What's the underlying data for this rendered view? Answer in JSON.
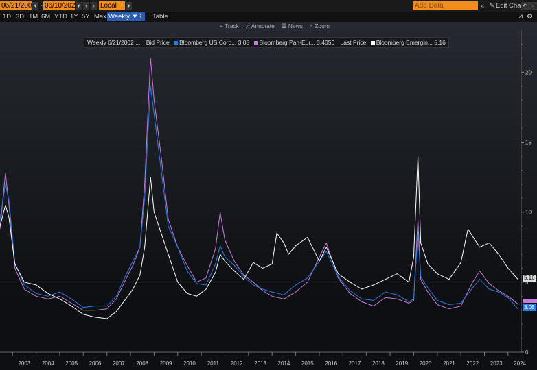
{
  "toolbar": {
    "start_date": "06/21/2002",
    "end_date": "06/10/2024",
    "separator": "-",
    "currency": "Local CCY",
    "add_data": "Add Data",
    "edit_chart": "Edit Chart",
    "periods": [
      "1D",
      "3D",
      "1M",
      "6M",
      "YTD",
      "1Y",
      "5Y",
      "Max"
    ],
    "frequency": "Weekly ▼",
    "table": "Table"
  },
  "toolbox": {
    "track": "Track",
    "annotate": "Annotate",
    "news": "News",
    "zoom": "Zoom"
  },
  "legend": {
    "prefix": "Weekly 6/21/2002 ...",
    "bid_price": "Bid Price",
    "last_price": "Last Price",
    "s1": "Bloomberg US Corp... 3.05",
    "s2": "Bloomberg Pan-Eur... 3.4056",
    "s3": "Bloomberg Emergin... 5.16"
  },
  "last_labels": {
    "s1": "3.05",
    "s3": "5.16"
  },
  "colors": {
    "accent": "#f28c1a",
    "s1": "#2a7de1",
    "s2": "#c77ddb",
    "s3": "#ffffff"
  },
  "chart_data": {
    "type": "line",
    "title": "",
    "xlabel": "",
    "ylabel": "",
    "xlim": [
      2002.47,
      2024.44
    ],
    "ylim": [
      0,
      23
    ],
    "y_ticks": [
      0,
      5,
      10,
      15,
      20
    ],
    "x_tick_labels": [
      "2003",
      "2004",
      "2005",
      "2006",
      "2007",
      "2008",
      "2009",
      "2010",
      "2011",
      "2012",
      "2013",
      "2014",
      "2015",
      "2016",
      "2017",
      "2018",
      "2019",
      "2020",
      "2021",
      "2022",
      "2023",
      "2024"
    ],
    "grid": false,
    "series": [
      {
        "name": "Bloomberg US Corp...",
        "x": [
          2002.47,
          2002.7,
          2002.85,
          2003.1,
          2003.5,
          2004.0,
          2004.5,
          2005.0,
          2005.5,
          2006.0,
          2006.5,
          2007.0,
          2007.4,
          2007.8,
          2008.1,
          2008.4,
          2008.6,
          2008.75,
          2008.85,
          2009.0,
          2009.3,
          2009.6,
          2010.0,
          2010.4,
          2010.8,
          2011.2,
          2011.6,
          2011.8,
          2012.0,
          2012.4,
          2012.8,
          2013.2,
          2013.6,
          2014.0,
          2014.5,
          2015.0,
          2015.5,
          2016.0,
          2016.3,
          2016.8,
          2017.3,
          2017.8,
          2018.3,
          2018.8,
          2019.3,
          2019.8,
          2020.0,
          2020.18,
          2020.3,
          2020.6,
          2021.0,
          2021.5,
          2022.0,
          2022.5,
          2022.8,
          2023.2,
          2023.6,
          2024.0,
          2024.44
        ],
        "values": [
          9.5,
          12.0,
          10.8,
          6.4,
          4.8,
          4.2,
          4.0,
          4.3,
          3.8,
          3.2,
          3.3,
          3.3,
          4.0,
          5.5,
          6.5,
          7.5,
          11.0,
          16.0,
          19.0,
          17.0,
          13.0,
          9.0,
          7.5,
          5.8,
          4.9,
          4.8,
          6.3,
          7.6,
          6.8,
          6.2,
          5.4,
          4.8,
          4.5,
          4.3,
          4.1,
          4.8,
          5.3,
          6.5,
          7.2,
          5.4,
          4.4,
          3.8,
          3.7,
          4.3,
          4.1,
          3.6,
          3.8,
          8.5,
          5.4,
          4.6,
          3.7,
          3.4,
          3.5,
          4.6,
          5.2,
          4.5,
          4.3,
          3.9,
          3.05
        ]
      },
      {
        "name": "Bloomberg Pan-Eur...",
        "x": [
          2002.47,
          2002.7,
          2002.85,
          2003.1,
          2003.5,
          2004.0,
          2004.5,
          2005.0,
          2005.5,
          2006.0,
          2006.5,
          2007.0,
          2007.4,
          2007.8,
          2008.1,
          2008.4,
          2008.6,
          2008.75,
          2008.85,
          2009.0,
          2009.3,
          2009.6,
          2010.0,
          2010.4,
          2010.8,
          2011.2,
          2011.6,
          2011.8,
          2012.0,
          2012.4,
          2012.8,
          2013.2,
          2013.6,
          2014.0,
          2014.5,
          2015.0,
          2015.5,
          2016.0,
          2016.3,
          2016.8,
          2017.3,
          2017.8,
          2018.3,
          2018.8,
          2019.3,
          2019.8,
          2020.0,
          2020.18,
          2020.3,
          2020.6,
          2021.0,
          2021.5,
          2022.0,
          2022.5,
          2022.8,
          2023.2,
          2023.6,
          2024.0,
          2024.44
        ],
        "values": [
          8.8,
          12.8,
          10.5,
          6.0,
          4.5,
          4.0,
          3.8,
          4.0,
          3.5,
          3.0,
          3.0,
          3.1,
          3.8,
          5.2,
          6.2,
          7.5,
          12.0,
          17.5,
          21.0,
          18.0,
          14.0,
          9.5,
          7.5,
          6.2,
          5.0,
          5.3,
          7.4,
          10.0,
          8.0,
          6.5,
          5.5,
          5.0,
          4.4,
          4.0,
          3.8,
          4.3,
          5.0,
          6.8,
          7.8,
          5.3,
          4.2,
          3.6,
          3.3,
          3.9,
          3.8,
          3.5,
          3.7,
          9.5,
          5.2,
          4.3,
          3.4,
          3.1,
          3.3,
          5.0,
          5.8,
          4.9,
          4.4,
          4.0,
          3.41
        ]
      },
      {
        "name": "Bloomberg Emergin...",
        "x": [
          2002.47,
          2002.7,
          2002.85,
          2003.1,
          2003.5,
          2004.0,
          2004.5,
          2005.0,
          2005.5,
          2006.0,
          2006.5,
          2007.0,
          2007.4,
          2007.8,
          2008.1,
          2008.4,
          2008.6,
          2008.75,
          2008.85,
          2009.0,
          2009.3,
          2009.6,
          2010.0,
          2010.4,
          2010.8,
          2011.2,
          2011.6,
          2011.8,
          2012.0,
          2012.4,
          2012.8,
          2013.2,
          2013.6,
          2014.0,
          2014.2,
          2014.5,
          2014.7,
          2015.0,
          2015.5,
          2016.0,
          2016.3,
          2016.8,
          2017.3,
          2017.8,
          2018.3,
          2018.8,
          2019.3,
          2019.8,
          2020.0,
          2020.18,
          2020.3,
          2020.6,
          2021.0,
          2021.5,
          2022.0,
          2022.3,
          2022.6,
          2022.8,
          2023.2,
          2023.6,
          2024.0,
          2024.44
        ],
        "values": [
          9.0,
          10.5,
          9.6,
          6.3,
          5.0,
          4.8,
          4.2,
          3.8,
          3.3,
          2.7,
          2.5,
          2.4,
          2.9,
          3.8,
          4.5,
          5.5,
          7.5,
          10.5,
          12.5,
          10.0,
          8.5,
          7.0,
          5.0,
          4.2,
          4.0,
          4.5,
          5.7,
          7.0,
          6.5,
          5.8,
          5.2,
          6.4,
          6.0,
          6.3,
          8.5,
          7.8,
          7.0,
          7.6,
          8.2,
          6.5,
          7.5,
          5.6,
          5.0,
          4.5,
          4.8,
          5.2,
          5.6,
          5.0,
          6.8,
          14.0,
          7.8,
          6.3,
          5.6,
          5.2,
          6.4,
          8.8,
          8.0,
          7.5,
          7.8,
          7.0,
          6.0,
          5.16
        ]
      }
    ]
  }
}
